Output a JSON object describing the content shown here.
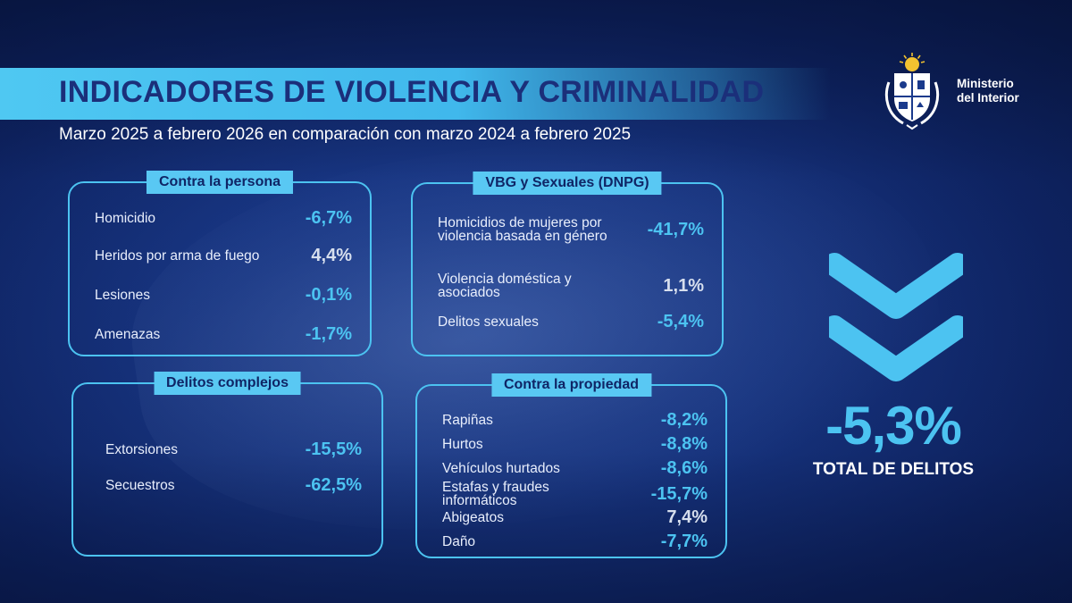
{
  "header": {
    "title": "INDICADORES DE VIOLENCIA Y CRIMINALIDAD",
    "subtitle": "Marzo 2025 a febrero 2026 en comparación con marzo 2024 a febrero 2025"
  },
  "logo": {
    "line1": "Ministerio",
    "line2": "del Interior"
  },
  "colors": {
    "accent": "#4cc3f1",
    "title": "#1b2f7a",
    "background": "#1a3a8c"
  },
  "panels": {
    "persona": {
      "label": "Contra la persona",
      "rows": [
        {
          "label": "Homicidio",
          "value": "-6,7%"
        },
        {
          "label": "Heridos por arma de fuego",
          "value": "4,4%"
        },
        {
          "label": "Lesiones",
          "value": "-0,1%"
        },
        {
          "label": "Amenazas",
          "value": "-1,7%"
        }
      ]
    },
    "vbg": {
      "label": "VBG y Sexuales (DNPG)",
      "rows": [
        {
          "label": "Homicidios de mujeres por violencia basada en género",
          "value": "-41,7%"
        },
        {
          "label": "Violencia doméstica y asociados",
          "value": "1,1%"
        },
        {
          "label": "Delitos sexuales",
          "value": "-5,4%"
        }
      ]
    },
    "complejos": {
      "label": "Delitos complejos",
      "rows": [
        {
          "label": "Extorsiones",
          "value": "-15,5%"
        },
        {
          "label": "Secuestros",
          "value": "-62,5%"
        }
      ]
    },
    "propiedad": {
      "label": "Contra la propiedad",
      "rows": [
        {
          "label": "Rapiñas",
          "value": "-8,2%"
        },
        {
          "label": "Hurtos",
          "value": "-8,8%"
        },
        {
          "label": "Vehículos hurtados",
          "value": "-8,6%"
        },
        {
          "label": "Estafas y fraudes informáticos",
          "value": "-15,7%"
        },
        {
          "label": "Abigeatos",
          "value": "7,4%"
        },
        {
          "label": "Daño",
          "value": "-7,7%"
        }
      ]
    }
  },
  "total": {
    "value": "-5,3%",
    "label": "TOTAL DE DELITOS",
    "icon": "double-chevron-down-icon"
  }
}
